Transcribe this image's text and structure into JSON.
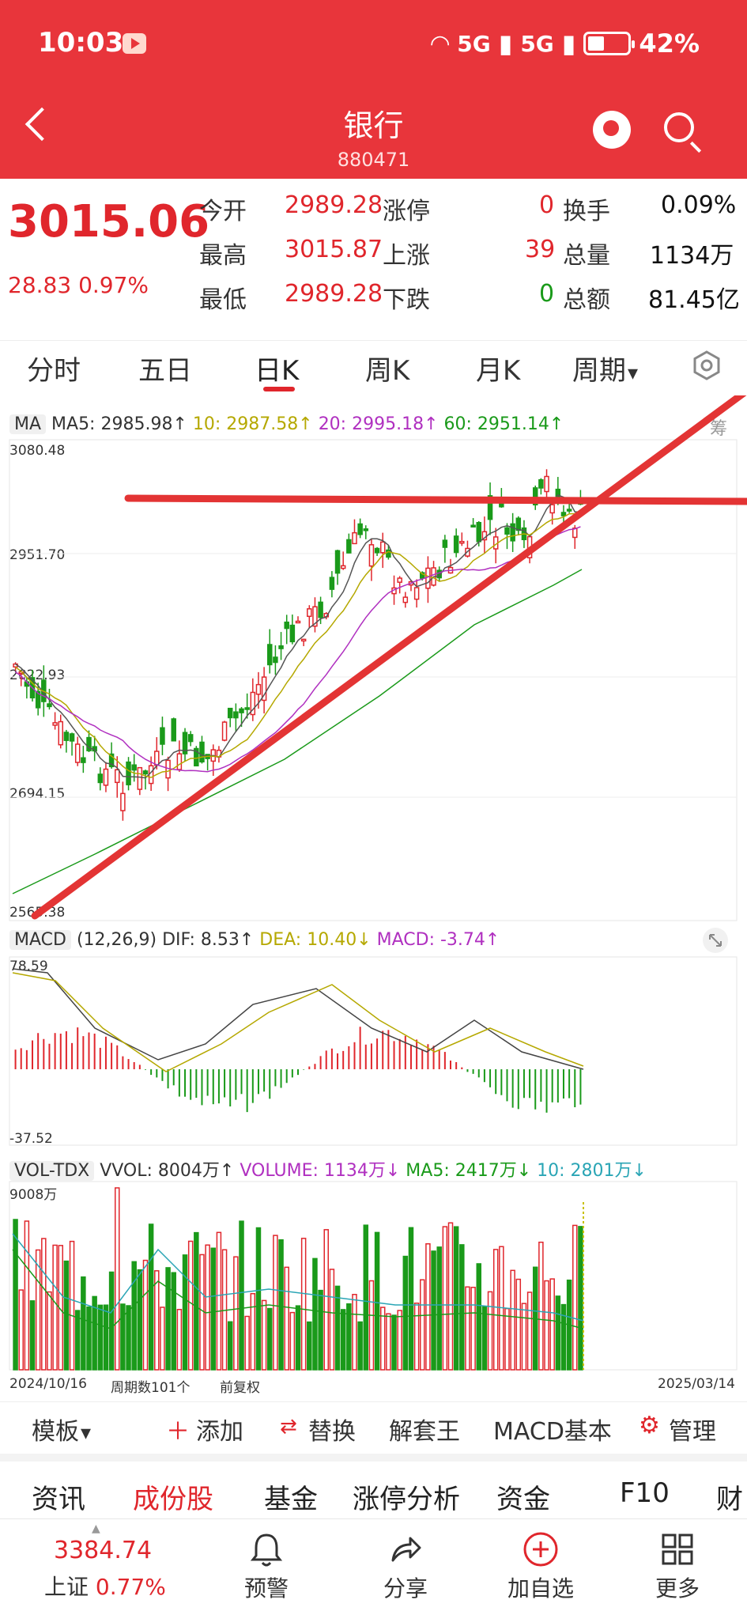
{
  "status_bar": {
    "time": "10:03",
    "signal1": "5G",
    "signal2": "5G",
    "battery": "42%"
  },
  "header": {
    "title": "银行",
    "code": "880471"
  },
  "quote": {
    "price": "3015.06",
    "change": "28.83",
    "change_pct": "0.97%",
    "rows": [
      {
        "l1": "今开",
        "v1": "2989.28",
        "l2": "涨停",
        "v2": "0",
        "l3": "换手",
        "v3": "0.09%"
      },
      {
        "l1": "最高",
        "v1": "3015.87",
        "l2": "上涨",
        "v2": "39",
        "l3": "总量",
        "v3": "1134万"
      },
      {
        "l1": "最低",
        "v1": "2989.28",
        "l2": "下跌",
        "v2": "0",
        "l3": "总额",
        "v3": "81.45亿"
      }
    ]
  },
  "tabs": [
    "分时",
    "五日",
    "日K",
    "周K",
    "月K",
    "周期"
  ],
  "ma_legend": {
    "tag": "MA",
    "ma5": "MA5: 2985.98↑",
    "ma10": "10: 2987.58↑",
    "ma20": "20: 2995.18↑",
    "ma60": "60: 2951.14↑",
    "right": "筹"
  },
  "price_axis": {
    "top": "3080.48",
    "l2": "2951.70",
    "l3": "2822.93",
    "l4": "2694.15",
    "bottom": "2565.38"
  },
  "macd_legend": {
    "tag": "MACD",
    "params": "(12,26,9)",
    "dif": "DIF: 8.53↑",
    "dea": "DEA: 10.40↓",
    "macd": "MACD: -3.74↑"
  },
  "macd_axis": {
    "top": "78.59",
    "bottom": "-37.52"
  },
  "vol_legend": {
    "tag": "VOL-TDX",
    "vvol": "VVOL: 8004万↑",
    "volume": "VOLUME: 1134万↓",
    "ma5": "MA5: 2417万↓",
    "ma10": "10: 2801万↓"
  },
  "vol_axis": {
    "top": "9008万"
  },
  "date_axis": {
    "start": "2024/10/16",
    "periods": "周期数101个",
    "adjust": "前复权",
    "end": "2025/03/14"
  },
  "toolbar": {
    "template": "模板",
    "add": "添加",
    "replace": "替换",
    "unlock": "解套王",
    "macd_basic": "MACD基本",
    "manage": "管理"
  },
  "subtabs": [
    "资讯",
    "成份股",
    "基金",
    "涨停分析",
    "资金",
    "F10",
    "财"
  ],
  "bottom_nav": {
    "index_value": "3384.74",
    "index_name": "上证",
    "index_pct": "0.77%",
    "alert": "预警",
    "share": "分享",
    "add_fav": "加自选",
    "more": "更多"
  },
  "colors": {
    "up": "#e0262c",
    "down": "#1a9a1a",
    "header": "#e8353b"
  }
}
